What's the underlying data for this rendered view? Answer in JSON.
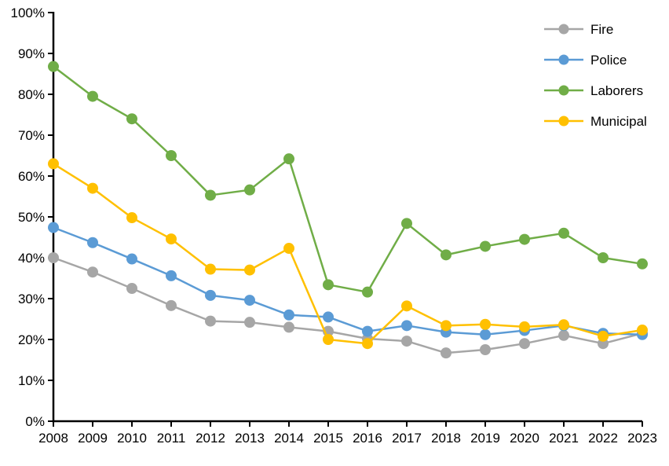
{
  "chart_data": {
    "type": "line",
    "title": "",
    "xlabel": "",
    "ylabel": "",
    "x": [
      2008,
      2009,
      2010,
      2011,
      2012,
      2013,
      2014,
      2015,
      2016,
      2017,
      2018,
      2019,
      2020,
      2021,
      2022,
      2023
    ],
    "y_axis": {
      "min": 0,
      "max": 100,
      "tick_step": 10,
      "tick_suffix": "%"
    },
    "grid": false,
    "legend_position": "top-right",
    "axis_color": "#000000",
    "background_color": "#ffffff",
    "series": [
      {
        "name": "Fire",
        "color": "#A6A6A6",
        "values": [
          40.0,
          36.5,
          32.5,
          28.3,
          24.5,
          24.2,
          23.0,
          22.0,
          20.2,
          19.6,
          16.7,
          17.5,
          19.0,
          21.0,
          19.0,
          21.5
        ]
      },
      {
        "name": "Police",
        "color": "#5B9BD5",
        "values": [
          47.4,
          43.7,
          39.7,
          35.6,
          30.8,
          29.6,
          26.0,
          25.5,
          22.0,
          23.4,
          21.8,
          21.2,
          22.2,
          23.4,
          21.5,
          21.2
        ]
      },
      {
        "name": "Laborers",
        "color": "#70AD47",
        "values": [
          86.8,
          79.5,
          74.0,
          65.0,
          55.3,
          56.6,
          64.2,
          33.4,
          31.6,
          48.4,
          40.7,
          42.8,
          44.5,
          46.0,
          40.0,
          38.5
        ]
      },
      {
        "name": "Municipal",
        "color": "#FFC000",
        "values": [
          63.0,
          57.0,
          49.8,
          44.6,
          37.2,
          37.0,
          42.3,
          20.0,
          19.0,
          28.2,
          23.4,
          23.7,
          23.1,
          23.6,
          20.8,
          22.3
        ]
      }
    ]
  }
}
